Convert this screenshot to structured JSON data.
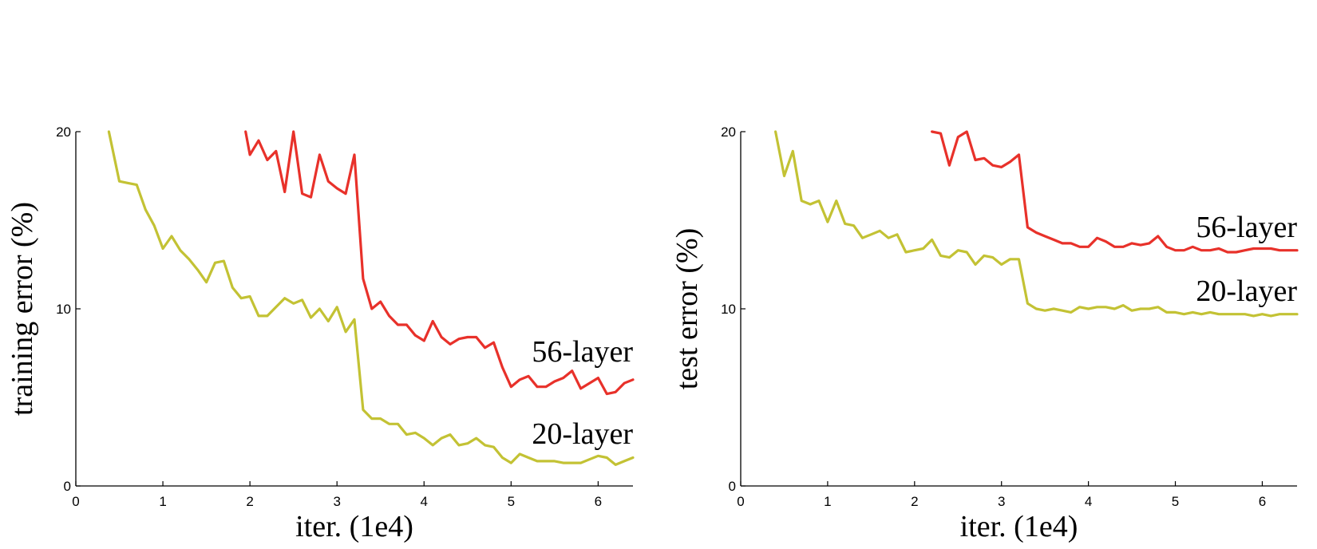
{
  "chart_data": [
    {
      "type": "line",
      "xlabel": "iter. (1e4)",
      "ylabel": "training error (%)",
      "xlim": [
        0,
        6.4
      ],
      "ylim": [
        0,
        20
      ],
      "xticks": [
        "0",
        "1",
        "2",
        "3",
        "4",
        "5",
        "6"
      ],
      "yticks": [
        "0",
        "10",
        "20"
      ],
      "grid": false,
      "series": [
        {
          "name": "56-layer",
          "color": "#e8312a",
          "label_position": "right, above line",
          "x": [
            1.95,
            2.0,
            2.1,
            2.2,
            2.3,
            2.4,
            2.5,
            2.6,
            2.7,
            2.8,
            2.9,
            3.0,
            3.1,
            3.2,
            3.3,
            3.4,
            3.5,
            3.6,
            3.7,
            3.8,
            3.9,
            4.0,
            4.1,
            4.2,
            4.3,
            4.4,
            4.5,
            4.6,
            4.7,
            4.8,
            4.9,
            5.0,
            5.1,
            5.2,
            5.3,
            5.4,
            5.5,
            5.6,
            5.7,
            5.8,
            5.9,
            6.0,
            6.1,
            6.2,
            6.3,
            6.4
          ],
          "values": [
            20.0,
            18.7,
            19.5,
            18.4,
            18.9,
            16.6,
            20.0,
            16.5,
            16.3,
            18.7,
            17.2,
            16.8,
            16.5,
            18.7,
            11.7,
            10.0,
            10.4,
            9.6,
            9.1,
            9.1,
            8.5,
            8.2,
            9.3,
            8.4,
            8.0,
            8.3,
            8.4,
            8.4,
            7.8,
            8.1,
            6.7,
            5.6,
            6.0,
            6.2,
            5.6,
            5.6,
            5.9,
            6.1,
            6.5,
            5.5,
            5.8,
            6.1,
            5.2,
            5.3,
            5.8,
            6.0
          ]
        },
        {
          "name": "20-layer",
          "color": "#c3c234",
          "label_position": "right, above line",
          "x": [
            0.38,
            0.5,
            0.6,
            0.7,
            0.8,
            0.9,
            1.0,
            1.1,
            1.2,
            1.3,
            1.4,
            1.5,
            1.6,
            1.7,
            1.8,
            1.9,
            2.0,
            2.1,
            2.2,
            2.3,
            2.4,
            2.5,
            2.6,
            2.7,
            2.8,
            2.9,
            3.0,
            3.1,
            3.2,
            3.3,
            3.4,
            3.5,
            3.6,
            3.7,
            3.8,
            3.9,
            4.0,
            4.1,
            4.2,
            4.3,
            4.4,
            4.5,
            4.6,
            4.7,
            4.8,
            4.9,
            5.0,
            5.1,
            5.2,
            5.3,
            5.4,
            5.5,
            5.6,
            5.7,
            5.8,
            5.9,
            6.0,
            6.1,
            6.2,
            6.3,
            6.4
          ],
          "values": [
            20.0,
            17.2,
            17.1,
            17.0,
            15.6,
            14.7,
            13.4,
            14.1,
            13.3,
            12.8,
            12.2,
            11.5,
            12.6,
            12.7,
            11.2,
            10.6,
            10.7,
            9.6,
            9.6,
            10.1,
            10.6,
            10.3,
            10.5,
            9.5,
            10.0,
            9.3,
            10.1,
            8.7,
            9.4,
            4.3,
            3.8,
            3.8,
            3.5,
            3.5,
            2.9,
            3.0,
            2.7,
            2.3,
            2.7,
            2.9,
            2.3,
            2.4,
            2.7,
            2.3,
            2.2,
            1.6,
            1.3,
            1.8,
            1.6,
            1.4,
            1.4,
            1.4,
            1.3,
            1.3,
            1.3,
            1.5,
            1.7,
            1.6,
            1.2,
            1.4,
            1.6
          ]
        }
      ]
    },
    {
      "type": "line",
      "xlabel": "iter. (1e4)",
      "ylabel": "test error (%)",
      "xlim": [
        0,
        6.4
      ],
      "ylim": [
        0,
        20
      ],
      "xticks": [
        "0",
        "1",
        "2",
        "3",
        "4",
        "5",
        "6"
      ],
      "yticks": [
        "0",
        "10",
        "20"
      ],
      "grid": false,
      "series": [
        {
          "name": "56-layer",
          "color": "#e8312a",
          "label_position": "right, above line",
          "x": [
            2.2,
            2.3,
            2.4,
            2.5,
            2.6,
            2.7,
            2.8,
            2.9,
            3.0,
            3.1,
            3.2,
            3.3,
            3.4,
            3.5,
            3.6,
            3.7,
            3.8,
            3.9,
            4.0,
            4.1,
            4.2,
            4.3,
            4.4,
            4.5,
            4.6,
            4.7,
            4.8,
            4.9,
            5.0,
            5.1,
            5.2,
            5.3,
            5.4,
            5.5,
            5.6,
            5.7,
            5.8,
            5.9,
            6.0,
            6.1,
            6.2,
            6.3,
            6.4
          ],
          "values": [
            20.0,
            19.9,
            18.1,
            19.7,
            20.0,
            18.4,
            18.5,
            18.1,
            18.0,
            18.3,
            18.7,
            14.6,
            14.3,
            14.1,
            13.9,
            13.7,
            13.7,
            13.5,
            13.5,
            14.0,
            13.8,
            13.5,
            13.5,
            13.7,
            13.6,
            13.7,
            14.1,
            13.5,
            13.3,
            13.3,
            13.5,
            13.3,
            13.3,
            13.4,
            13.2,
            13.2,
            13.3,
            13.4,
            13.4,
            13.4,
            13.3,
            13.3,
            13.3
          ]
        },
        {
          "name": "20-layer",
          "color": "#c3c234",
          "label_position": "right, above line",
          "x": [
            0.4,
            0.5,
            0.6,
            0.7,
            0.8,
            0.9,
            1.0,
            1.1,
            1.2,
            1.3,
            1.4,
            1.5,
            1.6,
            1.7,
            1.8,
            1.9,
            2.0,
            2.1,
            2.2,
            2.3,
            2.4,
            2.5,
            2.6,
            2.7,
            2.8,
            2.9,
            3.0,
            3.1,
            3.2,
            3.3,
            3.4,
            3.5,
            3.6,
            3.7,
            3.8,
            3.9,
            4.0,
            4.1,
            4.2,
            4.3,
            4.4,
            4.5,
            4.6,
            4.7,
            4.8,
            4.9,
            5.0,
            5.1,
            5.2,
            5.3,
            5.4,
            5.5,
            5.6,
            5.7,
            5.8,
            5.9,
            6.0,
            6.1,
            6.2,
            6.3,
            6.4
          ],
          "values": [
            20.0,
            17.5,
            18.9,
            16.1,
            15.9,
            16.1,
            14.9,
            16.1,
            14.8,
            14.7,
            14.0,
            14.2,
            14.4,
            14.0,
            14.2,
            13.2,
            13.3,
            13.4,
            13.9,
            13.0,
            12.9,
            13.3,
            13.2,
            12.5,
            13.0,
            12.9,
            12.5,
            12.8,
            12.8,
            10.3,
            10.0,
            9.9,
            10.0,
            9.9,
            9.8,
            10.1,
            10.0,
            10.1,
            10.1,
            10.0,
            10.2,
            9.9,
            10.0,
            10.0,
            10.1,
            9.8,
            9.8,
            9.7,
            9.8,
            9.7,
            9.8,
            9.7,
            9.7,
            9.7,
            9.7,
            9.6,
            9.7,
            9.6,
            9.7,
            9.7,
            9.7
          ]
        }
      ]
    }
  ]
}
